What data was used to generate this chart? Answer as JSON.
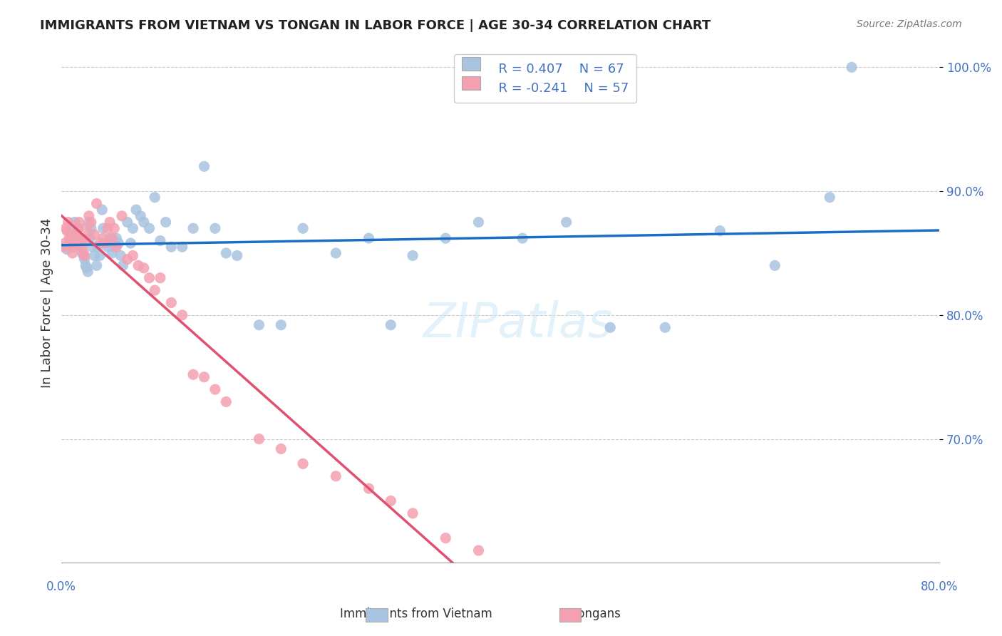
{
  "title": "IMMIGRANTS FROM VIETNAM VS TONGAN IN LABOR FORCE | AGE 30-34 CORRELATION CHART",
  "source": "Source: ZipAtlas.com",
  "ylabel": "In Labor Force | Age 30-34",
  "xlim": [
    0.0,
    0.8
  ],
  "ylim": [
    0.6,
    1.02
  ],
  "yticks": [
    0.7,
    0.8,
    0.9,
    1.0
  ],
  "ytick_labels": [
    "70.0%",
    "80.0%",
    "90.0%",
    "100.0%"
  ],
  "legend_r1": "R = 0.407",
  "legend_n1": "N = 67",
  "legend_r2": "R = -0.241",
  "legend_n2": "N = 57",
  "vietnam_color": "#a8c4e0",
  "tongan_color": "#f4a0b0",
  "trendline_vietnam_color": "#1a6fc4",
  "trendline_tongan_color": "#e05070",
  "trendline_tongan_dashed_color": "#f0b8c8",
  "watermark": "ZIPatlas",
  "background_color": "#ffffff",
  "grid_color": "#cccccc",
  "axis_label_color": "#4472c4",
  "vietnam_x": [
    0.005,
    0.008,
    0.01,
    0.012,
    0.013,
    0.015,
    0.016,
    0.018,
    0.019,
    0.02,
    0.021,
    0.022,
    0.023,
    0.024,
    0.025,
    0.026,
    0.027,
    0.028,
    0.03,
    0.032,
    0.033,
    0.035,
    0.037,
    0.038,
    0.04,
    0.042,
    0.044,
    0.046,
    0.048,
    0.05,
    0.052,
    0.054,
    0.056,
    0.06,
    0.063,
    0.065,
    0.068,
    0.072,
    0.075,
    0.08,
    0.085,
    0.09,
    0.095,
    0.1,
    0.11,
    0.12,
    0.13,
    0.14,
    0.15,
    0.16,
    0.18,
    0.2,
    0.22,
    0.25,
    0.28,
    0.3,
    0.32,
    0.35,
    0.38,
    0.42,
    0.46,
    0.5,
    0.55,
    0.6,
    0.65,
    0.7,
    0.72
  ],
  "vietnam_y": [
    0.853,
    0.868,
    0.862,
    0.875,
    0.858,
    0.87,
    0.86,
    0.855,
    0.85,
    0.848,
    0.845,
    0.84,
    0.838,
    0.835,
    0.875,
    0.862,
    0.87,
    0.855,
    0.848,
    0.84,
    0.855,
    0.848,
    0.885,
    0.87,
    0.858,
    0.855,
    0.862,
    0.85,
    0.855,
    0.862,
    0.858,
    0.848,
    0.84,
    0.875,
    0.858,
    0.87,
    0.885,
    0.88,
    0.875,
    0.87,
    0.895,
    0.86,
    0.875,
    0.855,
    0.855,
    0.87,
    0.92,
    0.87,
    0.85,
    0.848,
    0.792,
    0.792,
    0.87,
    0.85,
    0.862,
    0.792,
    0.848,
    0.862,
    0.875,
    0.862,
    0.875,
    0.79,
    0.79,
    0.868,
    0.84,
    0.895,
    1.0
  ],
  "tongan_x": [
    0.002,
    0.003,
    0.004,
    0.005,
    0.006,
    0.007,
    0.008,
    0.009,
    0.01,
    0.011,
    0.012,
    0.013,
    0.014,
    0.015,
    0.016,
    0.017,
    0.018,
    0.019,
    0.02,
    0.021,
    0.022,
    0.023,
    0.025,
    0.027,
    0.03,
    0.032,
    0.035,
    0.038,
    0.04,
    0.042,
    0.044,
    0.046,
    0.048,
    0.05,
    0.055,
    0.06,
    0.065,
    0.07,
    0.075,
    0.08,
    0.085,
    0.09,
    0.1,
    0.11,
    0.12,
    0.13,
    0.14,
    0.15,
    0.18,
    0.2,
    0.22,
    0.25,
    0.28,
    0.3,
    0.32,
    0.35,
    0.38
  ],
  "tongan_y": [
    0.855,
    0.858,
    0.87,
    0.868,
    0.875,
    0.862,
    0.86,
    0.858,
    0.85,
    0.855,
    0.858,
    0.865,
    0.862,
    0.87,
    0.875,
    0.862,
    0.858,
    0.855,
    0.85,
    0.848,
    0.862,
    0.87,
    0.88,
    0.875,
    0.865,
    0.89,
    0.858,
    0.862,
    0.858,
    0.87,
    0.875,
    0.862,
    0.87,
    0.855,
    0.88,
    0.845,
    0.848,
    0.84,
    0.838,
    0.83,
    0.82,
    0.83,
    0.81,
    0.8,
    0.752,
    0.75,
    0.74,
    0.73,
    0.7,
    0.692,
    0.68,
    0.67,
    0.66,
    0.65,
    0.64,
    0.62,
    0.61
  ]
}
